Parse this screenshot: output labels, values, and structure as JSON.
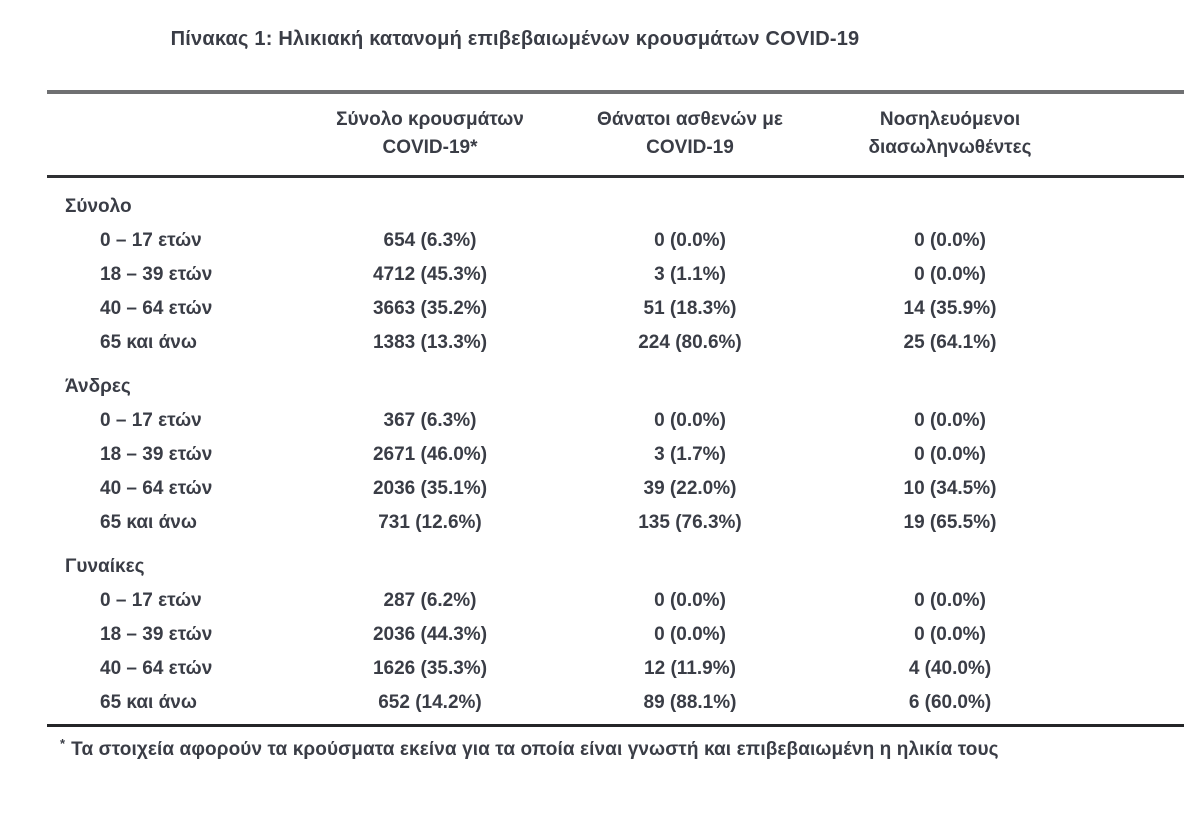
{
  "title": "Πίνακας 1: Ηλικιακή κατανομή επιβεβαιωμένων κρουσμάτων COVID-19",
  "table": {
    "columns": [
      {
        "line1": "Σύνολο κρουσμάτων",
        "line2": "COVID-19*"
      },
      {
        "line1": "Θάνατοι ασθενών με",
        "line2": "COVID-19"
      },
      {
        "line1": "Νοσηλευόμενοι",
        "line2": "διασωληνωθέντες"
      }
    ],
    "sections": [
      {
        "label": "Σύνολο",
        "rows": [
          {
            "label": "0 – 17 ετών",
            "cases": "654 (6.3%)",
            "deaths": "0 (0.0%)",
            "intubated": "0 (0.0%)"
          },
          {
            "label": "18 – 39 ετών",
            "cases": "4712 (45.3%)",
            "deaths": "3 (1.1%)",
            "intubated": "0 (0.0%)"
          },
          {
            "label": "40 – 64 ετών",
            "cases": "3663 (35.2%)",
            "deaths": "51 (18.3%)",
            "intubated": "14 (35.9%)"
          },
          {
            "label": "65 και άνω",
            "cases": "1383 (13.3%)",
            "deaths": "224 (80.6%)",
            "intubated": "25 (64.1%)"
          }
        ]
      },
      {
        "label": "Άνδρες",
        "rows": [
          {
            "label": "0 – 17 ετών",
            "cases": "367 (6.3%)",
            "deaths": "0 (0.0%)",
            "intubated": "0 (0.0%)"
          },
          {
            "label": "18 – 39 ετών",
            "cases": "2671 (46.0%)",
            "deaths": "3 (1.7%)",
            "intubated": "0 (0.0%)"
          },
          {
            "label": "40 – 64 ετών",
            "cases": "2036 (35.1%)",
            "deaths": "39 (22.0%)",
            "intubated": "10 (34.5%)"
          },
          {
            "label": "65 και άνω",
            "cases": "731 (12.6%)",
            "deaths": "135 (76.3%)",
            "intubated": "19 (65.5%)"
          }
        ]
      },
      {
        "label": "Γυναίκες",
        "rows": [
          {
            "label": "0 – 17 ετών",
            "cases": "287 (6.2%)",
            "deaths": "0 (0.0%)",
            "intubated": "0 (0.0%)"
          },
          {
            "label": "18 – 39 ετών",
            "cases": "2036 (44.3%)",
            "deaths": "0 (0.0%)",
            "intubated": "0 (0.0%)"
          },
          {
            "label": "40 – 64 ετών",
            "cases": "1626 (35.3%)",
            "deaths": "12 (11.9%)",
            "intubated": "4 (40.0%)"
          },
          {
            "label": "65 και άνω",
            "cases": "652 (14.2%)",
            "deaths": "89 (88.1%)",
            "intubated": "6 (60.0%)"
          }
        ]
      }
    ]
  },
  "footnote": {
    "marker": "*",
    "text": "Τα στοιχεία αφορούν τα κρούσματα εκείνα για τα οποία είναι γνωστή και επιβεβαιωμένη η ηλικία τους"
  },
  "colors": {
    "text": "#3a3d46",
    "rule_top": "#6f7072",
    "rule_dark": "#2f3033",
    "background": "#ffffff"
  }
}
